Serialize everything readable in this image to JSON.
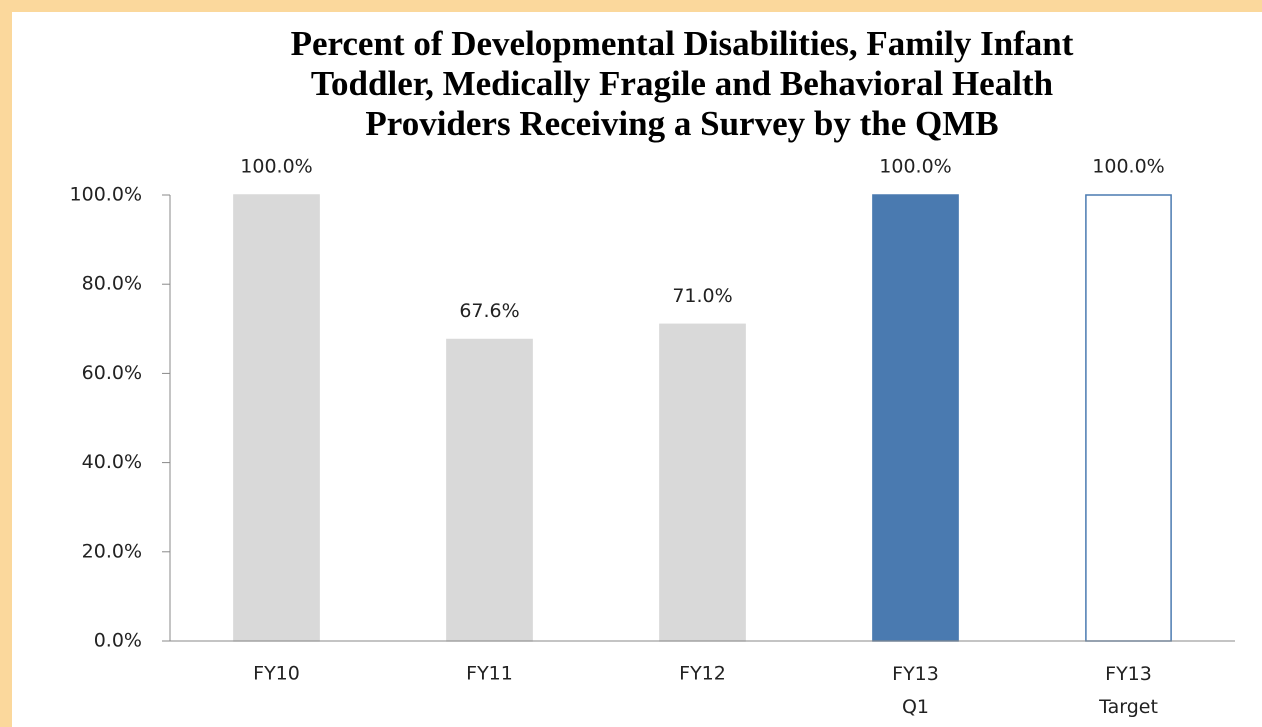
{
  "chart_data": {
    "type": "bar",
    "title": [
      "Percent of Developmental Disabilities, Family Infant",
      "Toddler, Medically Fragile and Behavioral Health",
      "Providers Receiving a Survey by the QMB"
    ],
    "categories": [
      "FY10",
      "FY11",
      "FY12",
      "FY13 Q1",
      "FY13 Target"
    ],
    "values": [
      100,
      67.6,
      71,
      100,
      100
    ],
    "value_labels": [
      "100.0%",
      "67.6%",
      "71.0%",
      "100.0%",
      "100.0%"
    ],
    "colors": [
      "#d9d9d9",
      "#d9d9d9",
      "#d9d9d9",
      "#4a7ab0",
      "#ffffff"
    ],
    "edgecolors": [
      "#d9d9d9",
      "#d9d9d9",
      "#d9d9d9",
      "#4a7ab0",
      "#4a7ab0"
    ],
    "ylim": [
      0,
      100
    ],
    "yticks": [
      {
        "value": 0,
        "label": "0.0%"
      },
      {
        "value": 20,
        "label": "20.0%"
      },
      {
        "value": 40,
        "label": "40.0%"
      },
      {
        "value": 60,
        "label": "60.0%"
      },
      {
        "value": 80,
        "label": "80.0%"
      },
      {
        "value": 100,
        "label": "100.0%"
      }
    ],
    "grid": false
  }
}
